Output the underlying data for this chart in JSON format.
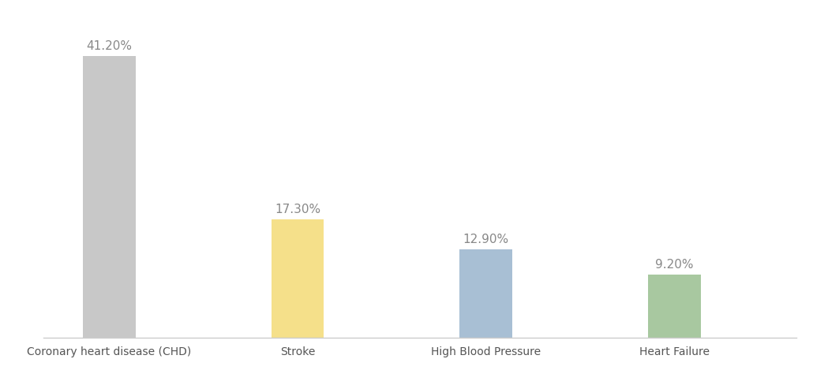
{
  "categories": [
    "Coronary heart disease (CHD)",
    "Stroke",
    "High Blood Pressure",
    "Heart Failure"
  ],
  "values": [
    41.2,
    17.3,
    12.9,
    9.2
  ],
  "labels": [
    "41.20%",
    "17.30%",
    "12.90%",
    "9.20%"
  ],
  "bar_colors": [
    "#c8c8c8",
    "#f5e08a",
    "#a8bfd4",
    "#a8c8a0"
  ],
  "background_color": "#ffffff",
  "ylim": [
    0,
    47
  ],
  "bar_width": 0.28,
  "label_fontsize": 11,
  "tick_fontsize": 10,
  "tick_color": "#555555",
  "label_color": "#888888",
  "spine_color": "#cccccc",
  "x_positions": [
    0,
    1,
    2,
    3
  ],
  "xlim": [
    -0.35,
    3.65
  ]
}
